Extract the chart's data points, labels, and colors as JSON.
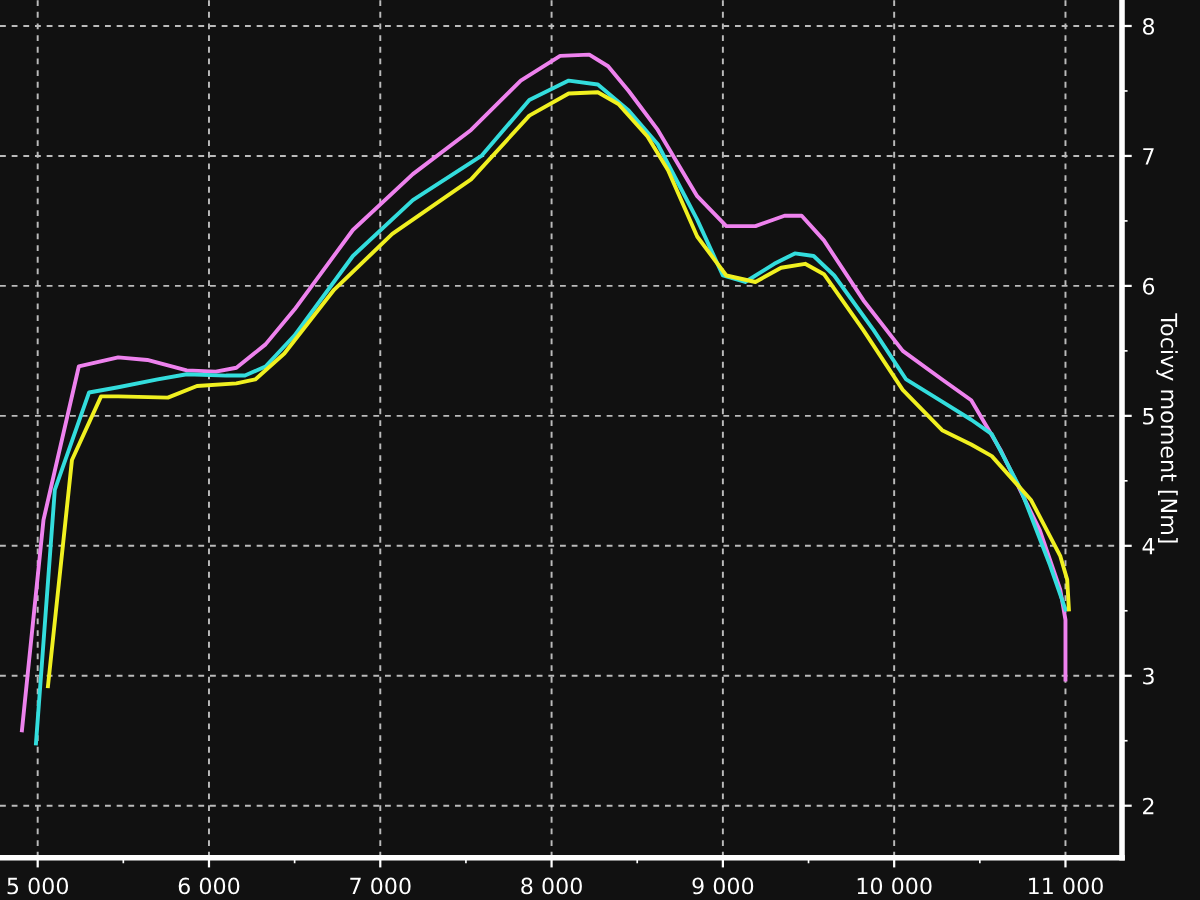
{
  "chart_data": {
    "type": "line",
    "ylabel": "Tocivy moment [Nm]",
    "xlim": [
      4780,
      11330
    ],
    "ylim": [
      1.6,
      8.2
    ],
    "xticks": [
      {
        "value": 5000,
        "label": "5 000"
      },
      {
        "value": 6000,
        "label": "6 000"
      },
      {
        "value": 7000,
        "label": "7 000"
      },
      {
        "value": 8000,
        "label": "8 000"
      },
      {
        "value": 9000,
        "label": "9 000"
      },
      {
        "value": 10000,
        "label": "10 000"
      },
      {
        "value": 11000,
        "label": "11 000"
      }
    ],
    "yticks": [
      2,
      3,
      4,
      5,
      6,
      7,
      8
    ],
    "grid": true,
    "marker": "none",
    "line_style": "solid",
    "series": [
      {
        "color": "#ee82ee",
        "x": [
          4908,
          5034,
          5240,
          5470,
          5640,
          5870,
          6040,
          6160,
          6330,
          6500,
          6840,
          7190,
          7530,
          7820,
          8050,
          8220,
          8330,
          8450,
          8620,
          8850,
          9020,
          9190,
          9360,
          9460,
          9590,
          9820,
          10050,
          10280,
          10450,
          10620,
          10850,
          10970,
          11000,
          11000
        ],
        "values": [
          2.58,
          4.2,
          5.38,
          5.45,
          5.43,
          5.35,
          5.34,
          5.37,
          5.55,
          5.82,
          6.43,
          6.86,
          7.2,
          7.58,
          7.77,
          7.78,
          7.69,
          7.5,
          7.2,
          6.69,
          6.46,
          6.46,
          6.54,
          6.54,
          6.35,
          5.89,
          5.5,
          5.28,
          5.12,
          4.74,
          4.12,
          3.66,
          3.43,
          2.97
        ]
      },
      {
        "color": "#33dddd",
        "x": [
          4990,
          5100,
          5300,
          5470,
          5700,
          5870,
          6100,
          6210,
          6330,
          6500,
          6840,
          7190,
          7590,
          7870,
          8100,
          8270,
          8450,
          8620,
          8850,
          9000,
          9130,
          9300,
          9420,
          9530,
          9650,
          9880,
          10070,
          10280,
          10450,
          10570,
          10740,
          10910,
          11000
        ],
        "values": [
          2.48,
          4.43,
          5.18,
          5.22,
          5.28,
          5.32,
          5.31,
          5.31,
          5.38,
          5.62,
          6.23,
          6.66,
          7.0,
          7.43,
          7.58,
          7.55,
          7.35,
          7.09,
          6.51,
          6.08,
          6.03,
          6.17,
          6.25,
          6.23,
          6.08,
          5.66,
          5.28,
          5.11,
          4.97,
          4.86,
          4.43,
          3.85,
          3.51
        ]
      },
      {
        "color": "#f0f020",
        "x": [
          5060,
          5200,
          5370,
          5470,
          5760,
          5930,
          6160,
          6270,
          6440,
          6730,
          7070,
          7530,
          7870,
          8100,
          8270,
          8390,
          8560,
          8680,
          8850,
          9020,
          9190,
          9340,
          9480,
          9590,
          9820,
          10050,
          10280,
          10450,
          10570,
          10800,
          10970,
          11010,
          11020
        ],
        "values": [
          2.92,
          4.66,
          5.15,
          5.15,
          5.14,
          5.23,
          5.25,
          5.28,
          5.48,
          5.97,
          6.4,
          6.82,
          7.31,
          7.48,
          7.49,
          7.4,
          7.15,
          6.89,
          6.38,
          6.08,
          6.03,
          6.14,
          6.17,
          6.09,
          5.66,
          5.2,
          4.89,
          4.78,
          4.69,
          4.35,
          3.92,
          3.74,
          3.51
        ]
      }
    ]
  }
}
